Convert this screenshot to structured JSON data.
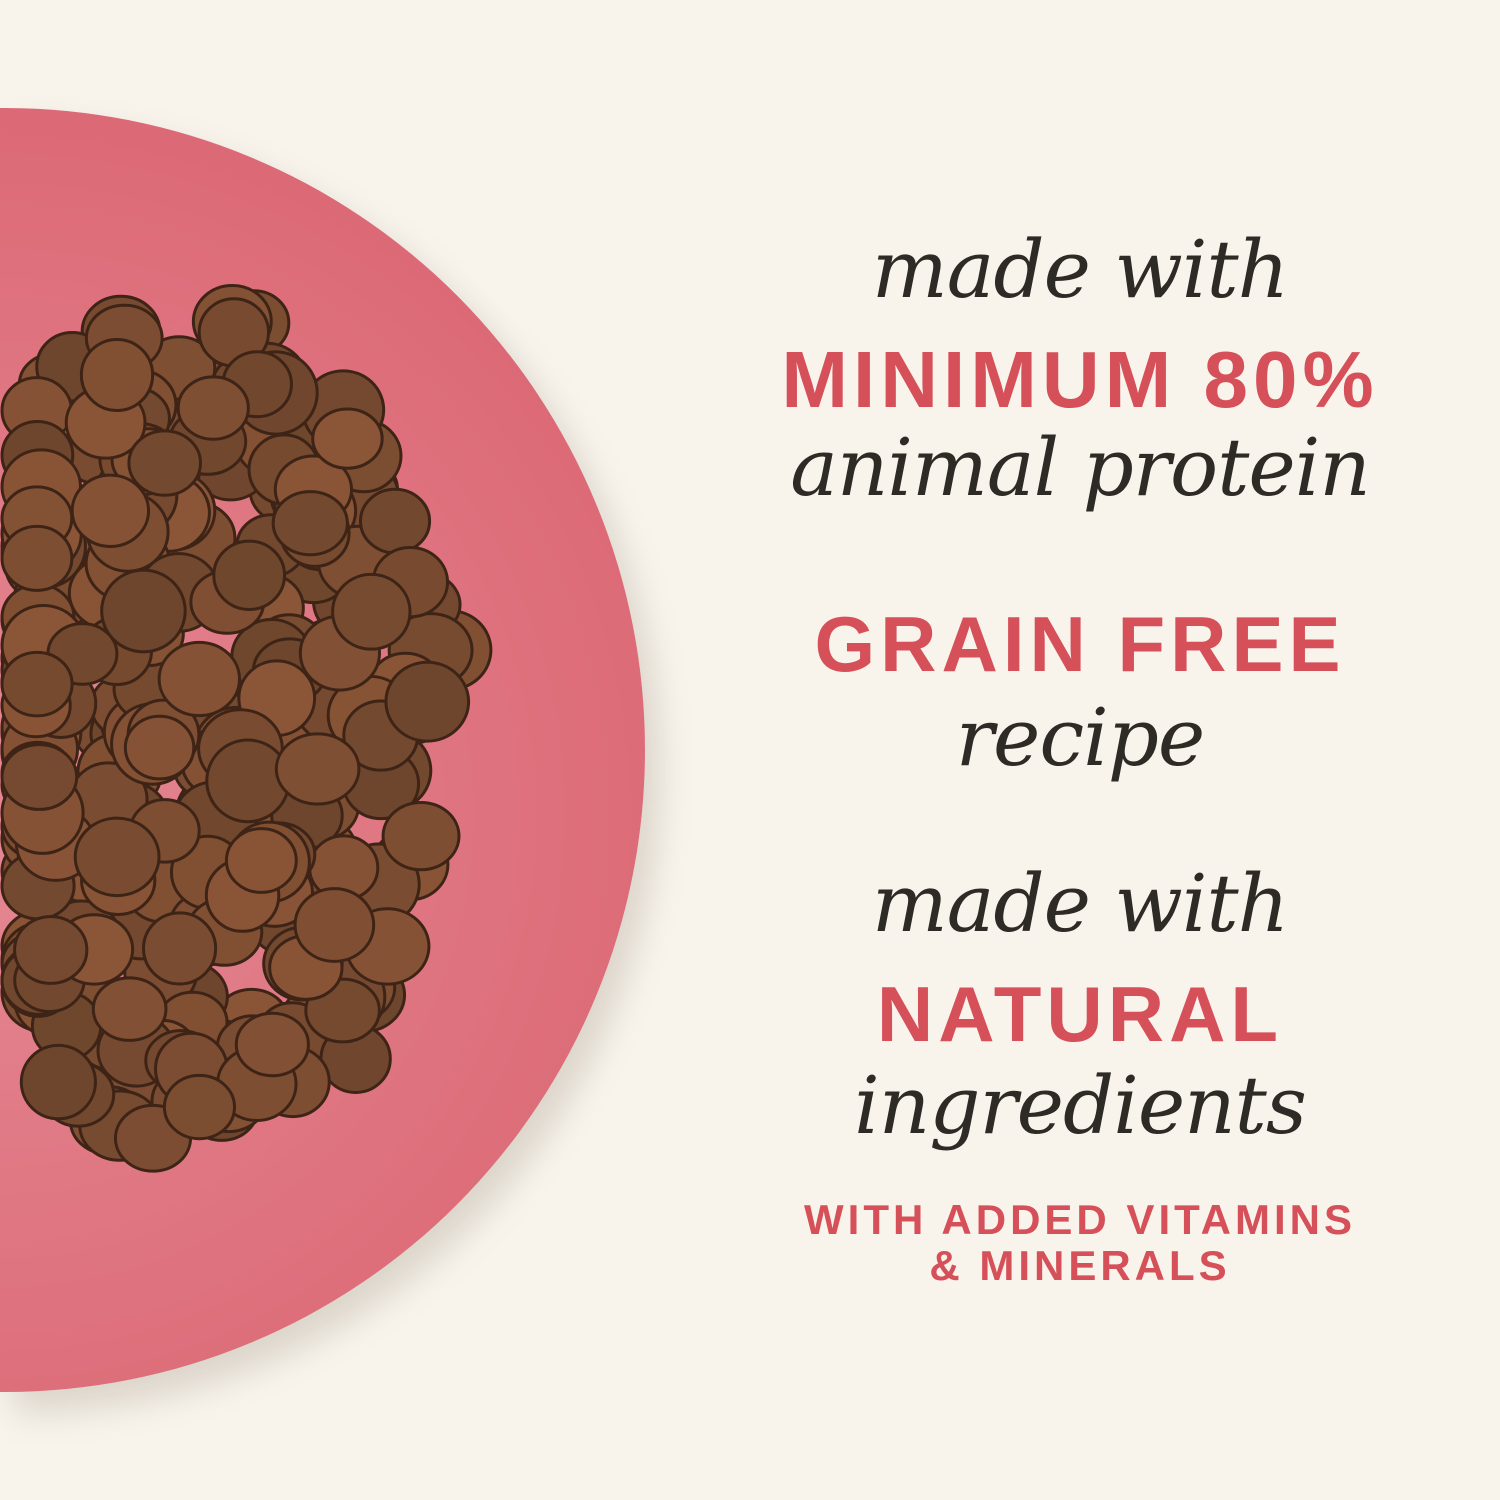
{
  "colors": {
    "background": "#f8f4ec",
    "plate": "#dd6f7b",
    "accent": "#d6505a",
    "script_text": "#2e2a25",
    "kibble": "#7a4a30"
  },
  "claims": [
    {
      "script": "made with",
      "highlight": "MINIMUM 80%",
      "script_after": "animal protein"
    },
    {
      "highlight": "GRAIN FREE",
      "script_after": "recipe"
    },
    {
      "script": "made with",
      "highlight": "NATURAL",
      "script_after": "ingredients",
      "note_line1": "WITH ADDED VITAMINS",
      "note_line2": "& MINERALS"
    }
  ]
}
